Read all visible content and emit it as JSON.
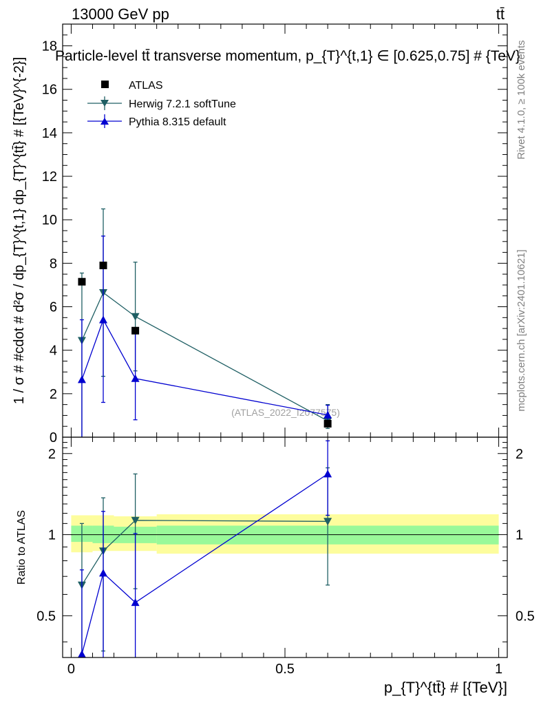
{
  "header": {
    "energy_label": "13000 GeV pp",
    "process_label": "tt̄"
  },
  "side_labels": {
    "rivet": "Rivet 4.1.0, ≥ 100k events",
    "mcplots": "mcplots.cern.ch [arXiv:2401.10621]"
  },
  "colors": {
    "atlas": "#000000",
    "herwig": "#1f5f64",
    "pythia": "#0000d0",
    "band_inner": "#99f999",
    "band_outer": "#fdfd9d"
  },
  "chart_data": [
    {
      "type": "scatter",
      "panel": "main",
      "title": "Particle-level tt̄ transverse momentum, p_{T}^{t,1} ∈ [0.625,0.75] # {TeV}",
      "xlabel": "p_{T}^{tt̄} # [{TeV}]",
      "ylabel": "1 / σ # #cdot # d²σ / dp_{T}^{t,1} dp_{T}^{tt̄} # [{TeV}^{-2}]",
      "xlim": [
        -0.02,
        1.02
      ],
      "ylim": [
        0,
        19
      ],
      "yticks": [
        0,
        2,
        4,
        6,
        8,
        10,
        12,
        14,
        16,
        18
      ],
      "watermark": "(ATLAS_2022_I2077575)",
      "legend_position": "top-left",
      "series": [
        {
          "name": "ATLAS",
          "marker": "square",
          "x": [
            0.025,
            0.075,
            0.15,
            0.6
          ],
          "y": [
            7.15,
            7.9,
            4.9,
            0.62
          ],
          "xerr": [
            0.025,
            0.025,
            0.05,
            0.4
          ],
          "yerr": [
            0.0,
            0.0,
            0.0,
            0.0
          ]
        },
        {
          "name": "Herwig 7.2.1 softTune",
          "marker": "triangle-down",
          "x": [
            0.025,
            0.075,
            0.15,
            0.6
          ],
          "y": [
            4.45,
            6.65,
            5.55,
            0.75
          ],
          "yerr_low": [
            4.45,
            3.85,
            2.5,
            0.35
          ],
          "yerr_high": [
            3.1,
            3.85,
            2.5,
            0.75
          ]
        },
        {
          "name": "Pythia 8.315 default",
          "marker": "triangle-up",
          "x": [
            0.025,
            0.075,
            0.15,
            0.6
          ],
          "y": [
            2.65,
            5.4,
            2.7,
            1.02
          ],
          "yerr_low": [
            2.65,
            3.8,
            1.9,
            0.3
          ],
          "yerr_high": [
            2.75,
            3.85,
            2.1,
            0.45
          ]
        }
      ]
    },
    {
      "type": "scatter",
      "panel": "ratio",
      "ylabel": "Ratio to ATLAS",
      "xlim": [
        -0.02,
        1.02
      ],
      "ylim": [
        0.35,
        2.3
      ],
      "yticks": [
        0.5,
        1,
        2
      ],
      "ytick_labels": [
        "0.5",
        "1",
        "2"
      ],
      "xticks": [
        0,
        0.5,
        1
      ],
      "xtick_labels": [
        "0",
        "0.5",
        "1"
      ],
      "band_bins": [
        [
          0,
          0.05
        ],
        [
          0.05,
          0.1
        ],
        [
          0.1,
          0.2
        ],
        [
          0.2,
          1.0
        ]
      ],
      "band_inner": [
        [
          0.94,
          1.08
        ],
        [
          0.93,
          1.08
        ],
        [
          0.93,
          1.07
        ],
        [
          0.92,
          1.08
        ]
      ],
      "band_outer": [
        [
          0.86,
          1.18
        ],
        [
          0.87,
          1.18
        ],
        [
          0.87,
          1.17
        ],
        [
          0.85,
          1.19
        ]
      ],
      "series": [
        {
          "name": "Herwig 7.2.1 softTune",
          "x": [
            0.025,
            0.075,
            0.15,
            0.6
          ],
          "y": [
            0.65,
            0.87,
            1.13,
            1.12
          ],
          "yerr_low": [
            0.4,
            0.5,
            0.5,
            0.47
          ],
          "yerr_high": [
            0.45,
            0.5,
            0.55,
            0.65
          ]
        },
        {
          "name": "Pythia 8.315 default",
          "x": [
            0.025,
            0.075,
            0.15,
            0.6
          ],
          "y": [
            0.36,
            0.72,
            0.56,
            1.68
          ],
          "yerr_low": [
            0.36,
            0.45,
            0.3,
            0.5
          ],
          "yerr_high": [
            0.38,
            0.5,
            0.45,
            0.55
          ]
        }
      ]
    }
  ]
}
